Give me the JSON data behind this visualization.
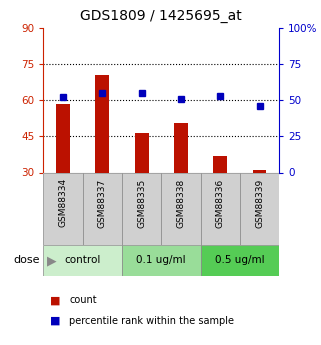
{
  "title": "GDS1809 / 1425695_at",
  "categories": [
    "GSM88334",
    "GSM88337",
    "GSM88335",
    "GSM88338",
    "GSM88336",
    "GSM88339"
  ],
  "bar_values": [
    58.5,
    70.5,
    46.5,
    50.5,
    37.0,
    31.0
  ],
  "bar_bottom": 30,
  "blue_values": [
    52,
    55,
    55,
    51,
    53,
    46
  ],
  "bar_color": "#bb1100",
  "blue_color": "#0000bb",
  "left_ylim": [
    30,
    90
  ],
  "right_ylim": [
    0,
    100
  ],
  "left_yticks": [
    30,
    45,
    60,
    75,
    90
  ],
  "right_yticks": [
    0,
    25,
    50,
    75,
    100
  ],
  "right_yticklabels": [
    "0",
    "25",
    "50",
    "75",
    "100%"
  ],
  "grid_values": [
    45,
    60,
    75
  ],
  "groups": [
    {
      "label": "control",
      "color": "#cceecc"
    },
    {
      "label": "0.1 ug/ml",
      "color": "#99dd99"
    },
    {
      "label": "0.5 ug/ml",
      "color": "#55cc55"
    }
  ],
  "dose_label": "dose",
  "left_axis_color": "#cc2200",
  "right_axis_color": "#0000cc",
  "title_fontsize": 10,
  "figsize": [
    3.21,
    3.45
  ],
  "dpi": 100
}
